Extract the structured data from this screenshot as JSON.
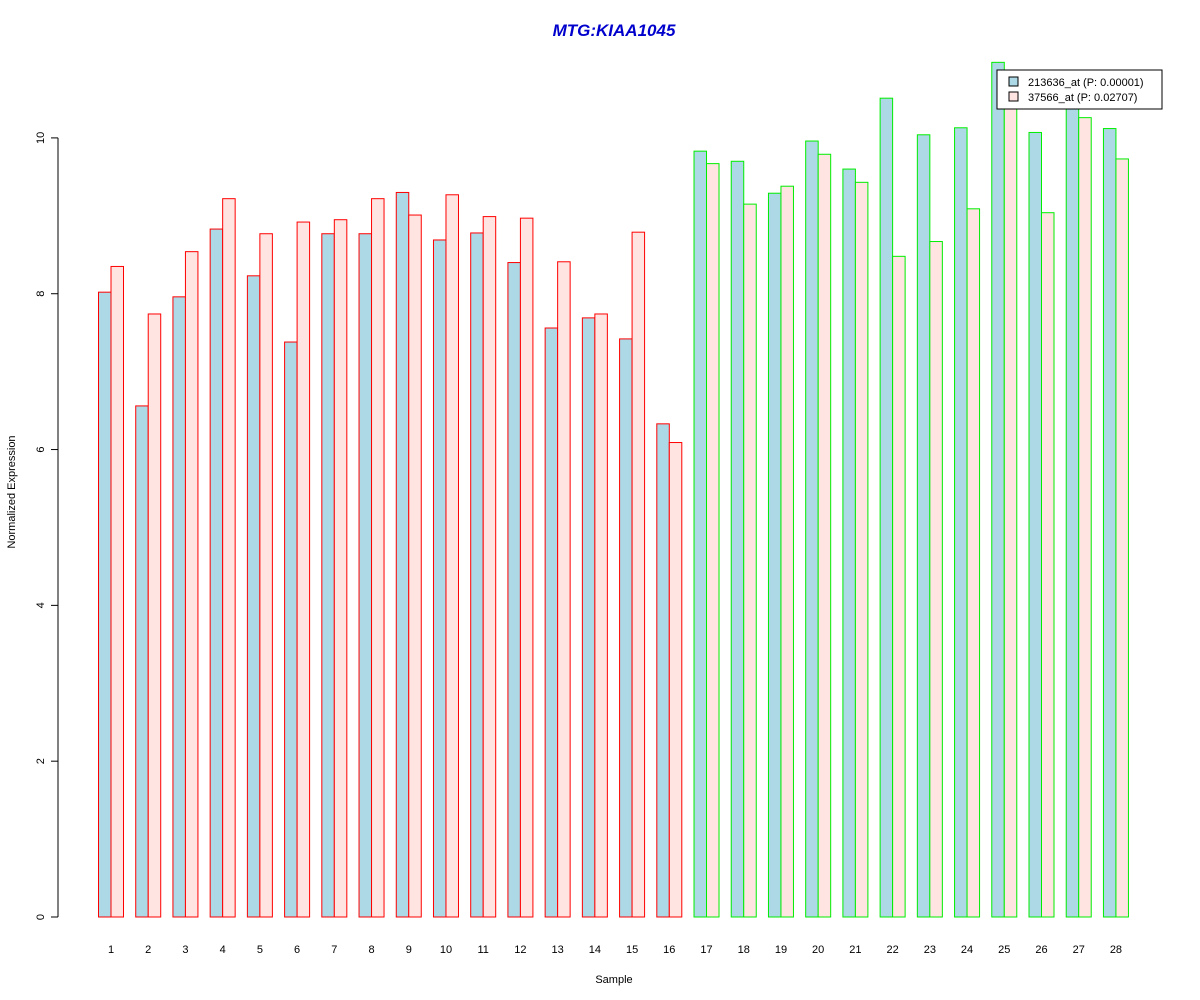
{
  "chart_data": {
    "type": "bar",
    "title": "MTG:KIAA1045",
    "xlabel": "Sample",
    "ylabel": "Normalized Expression",
    "ylim": [
      0,
      11
    ],
    "yticks": [
      0,
      2,
      4,
      6,
      8,
      10
    ],
    "categories": [
      "1",
      "2",
      "3",
      "4",
      "5",
      "6",
      "7",
      "8",
      "9",
      "10",
      "11",
      "12",
      "13",
      "14",
      "15",
      "16",
      "17",
      "18",
      "19",
      "20",
      "21",
      "22",
      "23",
      "24",
      "25",
      "26",
      "27",
      "28"
    ],
    "series": [
      {
        "name": "213636_at (P: 0.00001)",
        "fill": "#add8e6",
        "values": [
          8.02,
          6.56,
          7.96,
          8.83,
          8.23,
          7.38,
          8.77,
          8.77,
          9.3,
          8.69,
          8.78,
          8.4,
          7.56,
          7.69,
          7.42,
          6.33,
          9.83,
          9.7,
          9.29,
          9.96,
          9.6,
          10.51,
          10.04,
          10.13,
          10.97,
          10.07,
          10.51,
          10.12
        ]
      },
      {
        "name": "37566_at (P: 0.02707)",
        "fill": "#ffe4e1",
        "values": [
          8.35,
          7.74,
          8.54,
          9.22,
          8.77,
          8.92,
          8.95,
          9.22,
          9.01,
          9.27,
          8.99,
          8.97,
          8.41,
          7.74,
          8.79,
          6.09,
          9.67,
          9.15,
          9.38,
          9.79,
          9.43,
          8.48,
          8.67,
          9.09,
          10.49,
          9.04,
          10.26,
          9.73
        ]
      }
    ],
    "group_colors": {
      "1-16": "#ff0000",
      "17-28": "#00ee00"
    },
    "group_split_after": 16,
    "legend_position": "top-right",
    "grid": false
  },
  "colors": {
    "title": "#0000cd",
    "series1_fill": "#add8e6",
    "series2_fill": "#ffe4e1",
    "border_group_a": "#ff0000",
    "border_group_b": "#00ee00"
  }
}
